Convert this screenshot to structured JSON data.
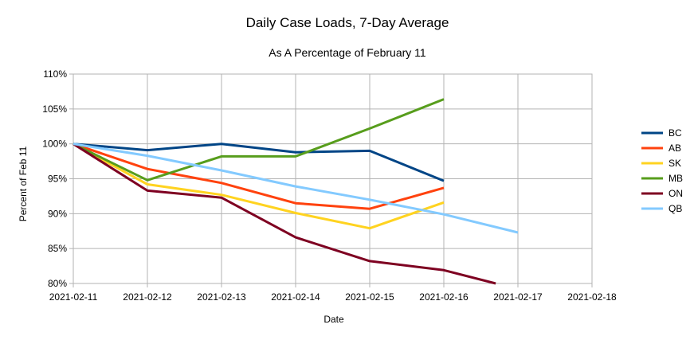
{
  "chart_data": {
    "type": "line",
    "title": "Daily Case Loads, 7-Day Average",
    "subtitle": "As A Percentage of February 11",
    "xlabel": "Date",
    "ylabel": "Percent of Feb 11",
    "categories": [
      "2021-02-11",
      "2021-02-12",
      "2021-02-13",
      "2021-02-14",
      "2021-02-15",
      "2021-02-16",
      "2021-02-17",
      "2021-02-18"
    ],
    "x_ticks": [
      "2021-02-11",
      "2021-02-12",
      "2021-02-13",
      "2021-02-14",
      "2021-02-15",
      "2021-02-16",
      "2021-02-17",
      "2021-02-18"
    ],
    "y_ticks": [
      "80%",
      "85%",
      "90%",
      "95%",
      "100%",
      "105%",
      "110%"
    ],
    "ylim": [
      80,
      110
    ],
    "grid": true,
    "legend_position": "right",
    "series": [
      {
        "name": "BC",
        "color": "#004586",
        "points": [
          [
            "2021-02-11",
            100
          ],
          [
            "2021-02-12",
            99.1
          ],
          [
            "2021-02-13",
            100
          ],
          [
            "2021-02-14",
            98.8
          ],
          [
            "2021-02-15",
            99
          ],
          [
            "2021-02-16",
            94.7
          ]
        ]
      },
      {
        "name": "AB",
        "color": "#ff420e",
        "points": [
          [
            "2021-02-11",
            100
          ],
          [
            "2021-02-12",
            96.4
          ],
          [
            "2021-02-13",
            94.4
          ],
          [
            "2021-02-14",
            91.5
          ],
          [
            "2021-02-15",
            90.7
          ],
          [
            "2021-02-16",
            93.7
          ]
        ]
      },
      {
        "name": "SK",
        "color": "#ffd320",
        "points": [
          [
            "2021-02-11",
            100
          ],
          [
            "2021-02-12",
            94.2
          ],
          [
            "2021-02-13",
            92.7
          ],
          [
            "2021-02-14",
            90.1
          ],
          [
            "2021-02-15",
            87.9
          ],
          [
            "2021-02-16",
            91.6
          ]
        ]
      },
      {
        "name": "MB",
        "color": "#579d1c",
        "points": [
          [
            "2021-02-11",
            100
          ],
          [
            "2021-02-12",
            94.8
          ],
          [
            "2021-02-13",
            98.2
          ],
          [
            "2021-02-14",
            98.2
          ],
          [
            "2021-02-15",
            102.2
          ],
          [
            "2021-02-16",
            106.4
          ]
        ]
      },
      {
        "name": "ON",
        "color": "#7e0021",
        "points": [
          [
            "2021-02-11",
            100
          ],
          [
            "2021-02-12",
            93.3
          ],
          [
            "2021-02-13",
            92.3
          ],
          [
            "2021-02-14",
            86.6
          ],
          [
            "2021-02-15",
            83.2
          ],
          [
            "2021-02-16",
            81.9
          ],
          [
            "2021-02-16.7",
            80
          ]
        ]
      },
      {
        "name": "QB",
        "color": "#83caff",
        "points": [
          [
            "2021-02-11",
            100
          ],
          [
            "2021-02-12",
            98.3
          ],
          [
            "2021-02-13",
            96.2
          ],
          [
            "2021-02-14",
            93.9
          ],
          [
            "2021-02-15",
            92
          ],
          [
            "2021-02-16",
            89.9
          ],
          [
            "2021-02-17",
            87.3
          ]
        ]
      }
    ]
  }
}
